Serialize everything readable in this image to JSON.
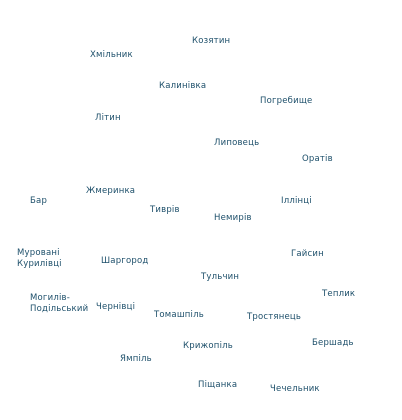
{
  "labels": [
    "Козятин",
    "Хмільник",
    "Калинівка",
    "Погребище",
    "Літин",
    "Липовець",
    "Оратів",
    "Жмеринка",
    "Бар",
    "Іллінці",
    "Тиврів",
    "Немирів",
    "Муровані Курилівці",
    "Шаргород",
    "Гайсин",
    "Тульчин",
    "Теплик",
    "Могилів-Подільський",
    "Чернівці",
    "Томашпіль",
    "Тростянець",
    "Бершадь",
    "Крижопіль",
    "Ямпіль",
    "Піщанка",
    "Чечельник"
  ]
}
